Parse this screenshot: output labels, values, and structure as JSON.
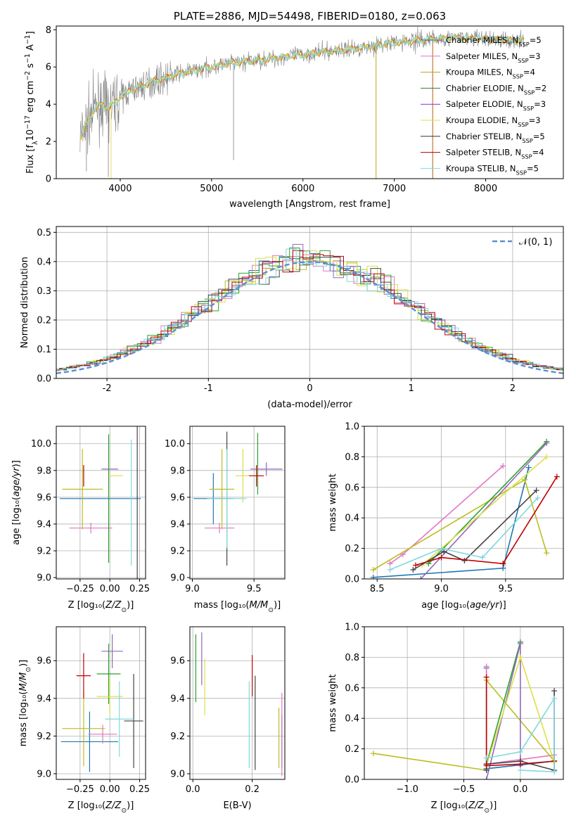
{
  "colors": {
    "Chabrier MILES": "#1f77b4",
    "Salpeter MILES": "#e377c2",
    "Kroupa MILES": "#bcbd22",
    "Chabrier ELODIE": "#2ca02c",
    "Salpeter ELODIE": "#9467bd",
    "Kroupa ELODIE": "#dbe04a",
    "Chabrier STELIB": "#444444",
    "Salpeter STELIB": "#c00000",
    "Kroupa STELIB": "#80d8e0",
    "normal": "#5b8ed6",
    "data": "#808080"
  },
  "chart_data": [
    {
      "id": "spectrum",
      "type": "line",
      "title": "PLATE=2886, MJD=54498, FIBERID=0180, z=0.063",
      "xlabel": "wavelength [Angstrom, rest frame]",
      "ylabel": "Flux [fλ10⁻¹⁷ erg cm⁻² s⁻¹ A⁻¹]",
      "xlim": [
        3300,
        8850
      ],
      "ylim": [
        0,
        8.2
      ],
      "xticks": [
        4000,
        5000,
        6000,
        7000,
        8000
      ],
      "yticks": [
        0,
        2,
        4,
        6,
        8
      ],
      "legend_position": "top-right",
      "legend": [
        {
          "name": "Chabrier MILES, N",
          "sub": "SSP",
          "suffix": "=5",
          "color": "#2c6fb0"
        },
        {
          "name": "Salpeter MILES, N",
          "sub": "SSP",
          "suffix": "=3",
          "color": "#e377c2"
        },
        {
          "name": "Kroupa MILES, N",
          "sub": "SSP",
          "suffix": "=4",
          "color": "#bca022"
        },
        {
          "name": "Chabrier ELODIE, N",
          "sub": "SSP",
          "suffix": "=2",
          "color": "#3a7a3a"
        },
        {
          "name": "Salpeter ELODIE, N",
          "sub": "SSP",
          "suffix": "=3",
          "color": "#8a2be2"
        },
        {
          "name": "Kroupa ELODIE, N",
          "sub": "SSP",
          "suffix": "=3",
          "color": "#dbe04a"
        },
        {
          "name": "Chabrier STELIB, N",
          "sub": "SSP",
          "suffix": "=5",
          "color": "#333333"
        },
        {
          "name": "Salpeter STELIB, N",
          "sub": "SSP",
          "suffix": "=4",
          "color": "#b00000"
        },
        {
          "name": "Kroupa STELIB, N",
          "sub": "SSP",
          "suffix": "=5",
          "color": "#80d8e0"
        }
      ],
      "model_curve": {
        "x": [
          3560,
          3600,
          3650,
          3700,
          3750,
          3800,
          3850,
          3900,
          3950,
          4000,
          4100,
          4200,
          4300,
          4400,
          4500,
          4600,
          4800,
          5000,
          5200,
          5400,
          5600,
          5800,
          6000,
          6200,
          6400,
          6600,
          6800,
          7000,
          7200,
          7400,
          7600,
          7800,
          8000,
          8200,
          8400
        ],
        "y": [
          2.2,
          2.6,
          3.1,
          3.6,
          3.9,
          4.0,
          3.8,
          3.9,
          4.1,
          4.4,
          4.7,
          4.9,
          5.1,
          5.3,
          5.4,
          5.6,
          5.8,
          6.0,
          6.2,
          6.3,
          6.4,
          6.55,
          6.65,
          6.8,
          6.9,
          7.0,
          7.15,
          7.3,
          7.4,
          7.5,
          7.55,
          7.55,
          7.5,
          7.45,
          7.4
        ]
      }
    },
    {
      "id": "residuals",
      "type": "line",
      "xlabel": "(data-model)/error",
      "ylabel": "Normed distribution",
      "xlim": [
        -2.5,
        2.5
      ],
      "ylim": [
        0,
        0.52
      ],
      "xticks": [
        -2,
        -1,
        0,
        1,
        2
      ],
      "yticks": [
        0.0,
        0.1,
        0.2,
        0.3,
        0.4,
        0.5
      ],
      "ytick_labels": [
        "0.0",
        "0.1",
        "0.2",
        "0.3",
        "0.4",
        "0.5"
      ],
      "legend": [
        {
          "name": "𝒩(0, 1)",
          "style": "dashed"
        }
      ],
      "bin_width": 0.1
    },
    {
      "id": "age_vs_Z",
      "type": "scatter",
      "xlabel": "Z [log₁₀(Z/Z⊙)]",
      "ylabel": "age  [log₁₀(age/yr)]",
      "xlim": [
        -0.45,
        0.3
      ],
      "ylim": [
        8.99,
        10.13
      ],
      "xticks": [
        -0.25,
        0.0,
        0.25
      ],
      "xtick_labels": [
        "−0.25",
        "0.00",
        "0.25"
      ],
      "yticks": [
        9.0,
        9.2,
        9.4,
        9.6,
        9.8,
        10.0
      ],
      "ytick_labels": [
        "9.0",
        "9.2",
        "9.4",
        "9.6",
        "9.8",
        "10.0"
      ],
      "points": [
        {
          "series": "Chabrier MILES",
          "x": -0.08,
          "xerr": 0.34,
          "y": 9.59,
          "yerr": 0.0
        },
        {
          "series": "Salpeter MILES",
          "x": -0.16,
          "xerr": 0.18,
          "y": 9.37,
          "yerr": 0.04
        },
        {
          "series": "Kroupa MILES",
          "x": -0.23,
          "xerr": 0.17,
          "y": 9.66,
          "yerr": 0.3
        },
        {
          "series": "Chabrier ELODIE",
          "x": -0.01,
          "xerr": 0.0,
          "y": 9.59,
          "yerr": 0.48
        },
        {
          "series": "Salpeter ELODIE",
          "x": 0.0,
          "xerr": 0.07,
          "y": 9.81,
          "yerr": 0.0
        },
        {
          "series": "Kroupa ELODIE",
          "x": 0.05,
          "xerr": 0.06,
          "y": 9.76,
          "yerr": 0.0
        },
        {
          "series": "Chabrier STELIB",
          "x": 0.23,
          "xerr": 0.0,
          "y": 9.59,
          "yerr": 0.67
        },
        {
          "series": "Salpeter STELIB",
          "x": -0.22,
          "xerr": 0.0,
          "y": 9.76,
          "yerr": 0.08
        },
        {
          "series": "Kroupa STELIB",
          "x": 0.18,
          "xerr": 0.0,
          "y": 9.56,
          "yerr": 0.47
        }
      ]
    },
    {
      "id": "age_vs_mass",
      "type": "scatter",
      "xlabel": "mass [log₁₀(M/M⊙)]",
      "xlim": [
        8.98,
        9.75
      ],
      "ylim": [
        8.99,
        10.13
      ],
      "xticks": [
        9.0,
        9.5
      ],
      "xtick_labels": [
        "9.0",
        "9.5"
      ],
      "yticks": [
        9.0,
        9.2,
        9.4,
        9.6,
        9.8,
        10.0
      ],
      "ytick_labels": [
        "9.0",
        "9.2",
        "9.4",
        "9.6",
        "9.8",
        "10.0"
      ],
      "points": [
        {
          "series": "Chabrier MILES",
          "x": 9.17,
          "xerr": 0.16,
          "y": 9.59,
          "yerr": 0.19
        },
        {
          "series": "Salpeter MILES",
          "x": 9.22,
          "xerr": 0.12,
          "y": 9.37,
          "yerr": 0.04
        },
        {
          "series": "Kroupa MILES",
          "x": 9.24,
          "xerr": 0.1,
          "y": 9.66,
          "yerr": 0.3
        },
        {
          "series": "Chabrier ELODIE",
          "x": 9.53,
          "xerr": 0.0,
          "y": 9.85,
          "yerr": 0.23
        },
        {
          "series": "Salpeter ELODIE",
          "x": 9.6,
          "xerr": 0.13,
          "y": 9.81,
          "yerr": 0.05
        },
        {
          "series": "Kroupa ELODIE",
          "x": 9.41,
          "xerr": 0.06,
          "y": 9.76,
          "yerr": 0.2
        },
        {
          "series": "Chabrier STELIB",
          "x": 9.28,
          "xerr": 0.0,
          "y": 9.59,
          "yerr": 0.5
        },
        {
          "series": "Salpeter STELIB",
          "x": 9.52,
          "xerr": 0.06,
          "y": 9.76,
          "yerr": 0.08
        },
        {
          "series": "Kroupa STELIB",
          "x": 9.28,
          "xerr": 0.16,
          "y": 9.59,
          "yerr": 0.37
        }
      ]
    },
    {
      "id": "mass_weight_vs_age",
      "type": "line",
      "xlabel": "age  [log₁₀(age/yr)]",
      "ylabel": "mass weight",
      "xlim": [
        8.4,
        9.95
      ],
      "ylim": [
        0,
        1.0
      ],
      "xticks": [
        8.5,
        9.0,
        9.5
      ],
      "xtick_labels": [
        "8.5",
        "9.0",
        "9.5"
      ],
      "yticks": [
        0.0,
        0.2,
        0.4,
        0.6,
        0.8,
        1.0
      ],
      "ytick_labels": [
        "0.0",
        "0.2",
        "0.4",
        "0.6",
        "0.8",
        "1.0"
      ],
      "series": [
        {
          "name": "Chabrier MILES",
          "x": [
            8.47,
            9.48,
            9.68
          ],
          "y": [
            0.01,
            0.07,
            0.73
          ]
        },
        {
          "name": "Salpeter MILES",
          "x": [
            8.6,
            8.7,
            9.48
          ],
          "y": [
            0.1,
            0.16,
            0.74
          ]
        },
        {
          "name": "Kroupa MILES",
          "x": [
            8.47,
            9.65,
            9.82
          ],
          "y": [
            0.06,
            0.65,
            0.17
          ]
        },
        {
          "name": "Chabrier ELODIE",
          "x": [
            8.9,
            9.82
          ],
          "y": [
            0.1,
            0.9
          ]
        },
        {
          "name": "Salpeter ELODIE",
          "x": [
            8.84,
            9.82
          ],
          "y": [
            0.0,
            0.89
          ]
        },
        {
          "name": "Kroupa ELODIE",
          "x": [
            8.85,
            9.82
          ],
          "y": [
            0.09,
            0.8
          ]
        },
        {
          "name": "Chabrier STELIB",
          "x": [
            8.78,
            9.02,
            9.18,
            9.74
          ],
          "y": [
            0.06,
            0.18,
            0.12,
            0.58
          ]
        },
        {
          "name": "Salpeter STELIB",
          "x": [
            8.8,
            9.0,
            9.48,
            9.9
          ],
          "y": [
            0.09,
            0.14,
            0.1,
            0.67
          ]
        },
        {
          "name": "Kroupa STELIB",
          "x": [
            8.6,
            9.0,
            9.32,
            9.75
          ],
          "y": [
            0.06,
            0.2,
            0.14,
            0.53
          ]
        }
      ]
    },
    {
      "id": "mass_vs_Z",
      "type": "scatter",
      "xlabel": "Z [log₁₀(Z/Z⊙)]",
      "ylabel": "mass [log₁₀(M/M⊙)]",
      "xlim": [
        -0.45,
        0.3
      ],
      "ylim": [
        8.97,
        9.78
      ],
      "xticks": [
        -0.25,
        0.0,
        0.25
      ],
      "xtick_labels": [
        "−0.25",
        "0.00",
        "0.25"
      ],
      "yticks": [
        9.0,
        9.2,
        9.4,
        9.6
      ],
      "ytick_labels": [
        "9.0",
        "9.2",
        "9.4",
        "9.6"
      ],
      "points": [
        {
          "series": "Chabrier MILES",
          "x": -0.17,
          "xerr": 0.24,
          "y": 9.17,
          "yerr": 0.16
        },
        {
          "series": "Salpeter MILES",
          "x": -0.06,
          "xerr": 0.12,
          "y": 9.21,
          "yerr": 0.05
        },
        {
          "series": "Kroupa MILES",
          "x": -0.22,
          "xerr": 0.18,
          "y": 9.24,
          "yerr": 0.2
        },
        {
          "series": "Chabrier ELODIE",
          "x": -0.01,
          "xerr": 0.1,
          "y": 9.53,
          "yerr": 0.16
        },
        {
          "series": "Salpeter ELODIE",
          "x": 0.02,
          "xerr": 0.09,
          "y": 9.65,
          "yerr": 0.09
        },
        {
          "series": "Kroupa ELODIE",
          "x": 0.0,
          "xerr": 0.11,
          "y": 9.41,
          "yerr": 0.1
        },
        {
          "series": "Chabrier STELIB",
          "x": 0.2,
          "xerr": 0.08,
          "y": 9.28,
          "yerr": 0.25
        },
        {
          "series": "Salpeter STELIB",
          "x": -0.22,
          "xerr": 0.06,
          "y": 9.52,
          "yerr": 0.12
        },
        {
          "series": "Kroupa STELIB",
          "x": 0.08,
          "xerr": 0.12,
          "y": 9.29,
          "yerr": 0.2
        }
      ]
    },
    {
      "id": "mass_vs_EBV",
      "type": "scatter",
      "xlabel": "E(B-V)",
      "xlim": [
        -0.01,
        0.31
      ],
      "ylim": [
        8.97,
        9.78
      ],
      "xticks": [
        0.0,
        0.2
      ],
      "xtick_labels": [
        "0.0",
        "0.2"
      ],
      "yticks": [
        9.0,
        9.2,
        9.4,
        9.6
      ],
      "ytick_labels": [
        "9.0",
        "9.2",
        "9.4",
        "9.6"
      ],
      "points": [
        {
          "series": "Chabrier MILES",
          "x": 0.3,
          "xerr": 0.0,
          "y": 9.17,
          "yerr": 0.14
        },
        {
          "series": "Salpeter MILES",
          "x": 0.3,
          "xerr": 0.0,
          "y": 9.21,
          "yerr": 0.22
        },
        {
          "series": "Kroupa MILES",
          "x": 0.29,
          "xerr": 0.0,
          "y": 9.19,
          "yerr": 0.16
        },
        {
          "series": "Chabrier ELODIE",
          "x": 0.01,
          "xerr": 0.0,
          "y": 9.56,
          "yerr": 0.18
        },
        {
          "series": "Salpeter ELODIE",
          "x": 0.03,
          "xerr": 0.0,
          "y": 9.61,
          "yerr": 0.14
        },
        {
          "series": "Kroupa ELODIE",
          "x": 0.04,
          "xerr": 0.0,
          "y": 9.46,
          "yerr": 0.15
        },
        {
          "series": "Chabrier STELIB",
          "x": 0.21,
          "xerr": 0.0,
          "y": 9.27,
          "yerr": 0.25
        },
        {
          "series": "Salpeter STELIB",
          "x": 0.2,
          "xerr": 0.0,
          "y": 9.52,
          "yerr": 0.11
        },
        {
          "series": "Kroupa STELIB",
          "x": 0.19,
          "xerr": 0.0,
          "y": 9.26,
          "yerr": 0.23
        }
      ]
    },
    {
      "id": "mass_weight_vs_Z",
      "type": "line",
      "xlabel": "Z [log₁₀(Z/Z⊙)]",
      "ylabel": "mass weight",
      "xlim": [
        -1.38,
        0.38
      ],
      "ylim": [
        0,
        1.0
      ],
      "xticks": [
        -1.0,
        -0.5,
        0.0
      ],
      "xtick_labels": [
        "−1.0",
        "−0.5",
        "0.0"
      ],
      "yticks": [
        0.0,
        0.2,
        0.4,
        0.6,
        0.8,
        1.0
      ],
      "ytick_labels": [
        "0.0",
        "0.2",
        "0.4",
        "0.6",
        "0.8",
        "1.0"
      ],
      "series": [
        {
          "name": "Chabrier MILES",
          "x": [
            -0.3,
            -0.3,
            0.3
          ],
          "y": [
            0.73,
            0.07,
            0.12
          ]
        },
        {
          "name": "Salpeter MILES",
          "x": [
            -0.3,
            -0.3,
            0.3
          ],
          "y": [
            0.74,
            0.1,
            0.16
          ]
        },
        {
          "name": "Kroupa MILES",
          "x": [
            -1.3,
            -0.3,
            -0.3,
            0.3
          ],
          "y": [
            0.17,
            0.06,
            0.65,
            0.12
          ]
        },
        {
          "name": "Chabrier ELODIE",
          "x": [
            -0.3,
            0.0
          ],
          "y": [
            0.1,
            0.9
          ]
        },
        {
          "name": "Salpeter ELODIE",
          "x": [
            -0.3,
            0.0,
            0.0
          ],
          "y": [
            0.0,
            0.89,
            0.09
          ]
        },
        {
          "name": "Kroupa ELODIE",
          "x": [
            -0.3,
            0.0,
            0.3
          ],
          "y": [
            0.09,
            0.8,
            0.11
          ]
        },
        {
          "name": "Chabrier STELIB",
          "x": [
            -0.3,
            -0.3,
            0.0,
            0.3,
            0.3
          ],
          "y": [
            0.06,
            0.1,
            0.12,
            0.06,
            0.58
          ]
        },
        {
          "name": "Salpeter STELIB",
          "x": [
            -0.3,
            -0.3,
            0.0,
            0.3
          ],
          "y": [
            0.67,
            0.09,
            0.1,
            0.12
          ]
        },
        {
          "name": "Kroupa STELIB",
          "x": [
            -0.3,
            0.0,
            0.3,
            0.3,
            0.0
          ],
          "y": [
            0.14,
            0.18,
            0.53,
            0.05,
            0.06
          ]
        }
      ]
    }
  ]
}
